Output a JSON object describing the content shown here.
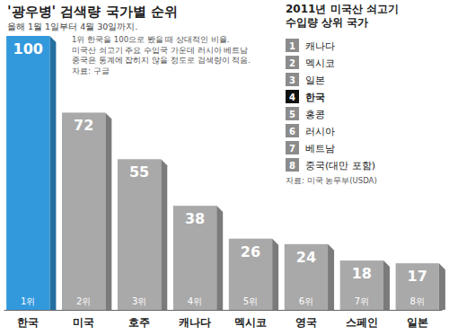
{
  "chart_data": {
    "type": "bar",
    "title": "'광우병' 검색량 국가별 순위",
    "subtitle": "올해 1월 1일부터 4월 30일까지.",
    "annotations": [
      "1위 한국을 100으로 봤을 때 상대적인 비율.",
      "미국산 쇠고기 주요 수입국 가운데 러시아 베트남",
      "중국은 통계에 잡히지 않을 정도로 검색량이 적음.",
      "자료: 구글"
    ],
    "categories": [
      "한국",
      "미국",
      "호주",
      "캐나다",
      "멕시코",
      "영국",
      "스페인",
      "일본"
    ],
    "values": [
      100,
      72,
      55,
      38,
      26,
      24,
      18,
      17
    ],
    "rank_labels": [
      "1위",
      "2위",
      "3위",
      "4위",
      "5위",
      "6위",
      "7위",
      "8위"
    ],
    "colors": [
      "#3399dd",
      "#a9a9a9",
      "#a9a9a9",
      "#a9a9a9",
      "#a9a9a9",
      "#a9a9a9",
      "#a9a9a9",
      "#a9a9a9"
    ],
    "ylim": [
      0,
      100
    ],
    "data_labels": true,
    "tick_labels": "x"
  },
  "inset": {
    "title": [
      "2011년 미국산 쇠고기",
      "수입량 상위 국가"
    ],
    "ranks": [
      "1",
      "2",
      "3",
      "4",
      "5",
      "6",
      "7",
      "8"
    ],
    "names": [
      "캐나다",
      "멕시코",
      "일본",
      "한국",
      "홍콩",
      "러시아",
      "베트남",
      "중국(대만 포함)"
    ],
    "colors": [
      "#8c8c8c",
      "#8c8c8c",
      "#8c8c8c",
      "#111111",
      "#8c8c8c",
      "#8c8c8c",
      "#8c8c8c",
      "#8c8c8c"
    ],
    "source": "자료: 미국 농무부(USDA)"
  }
}
